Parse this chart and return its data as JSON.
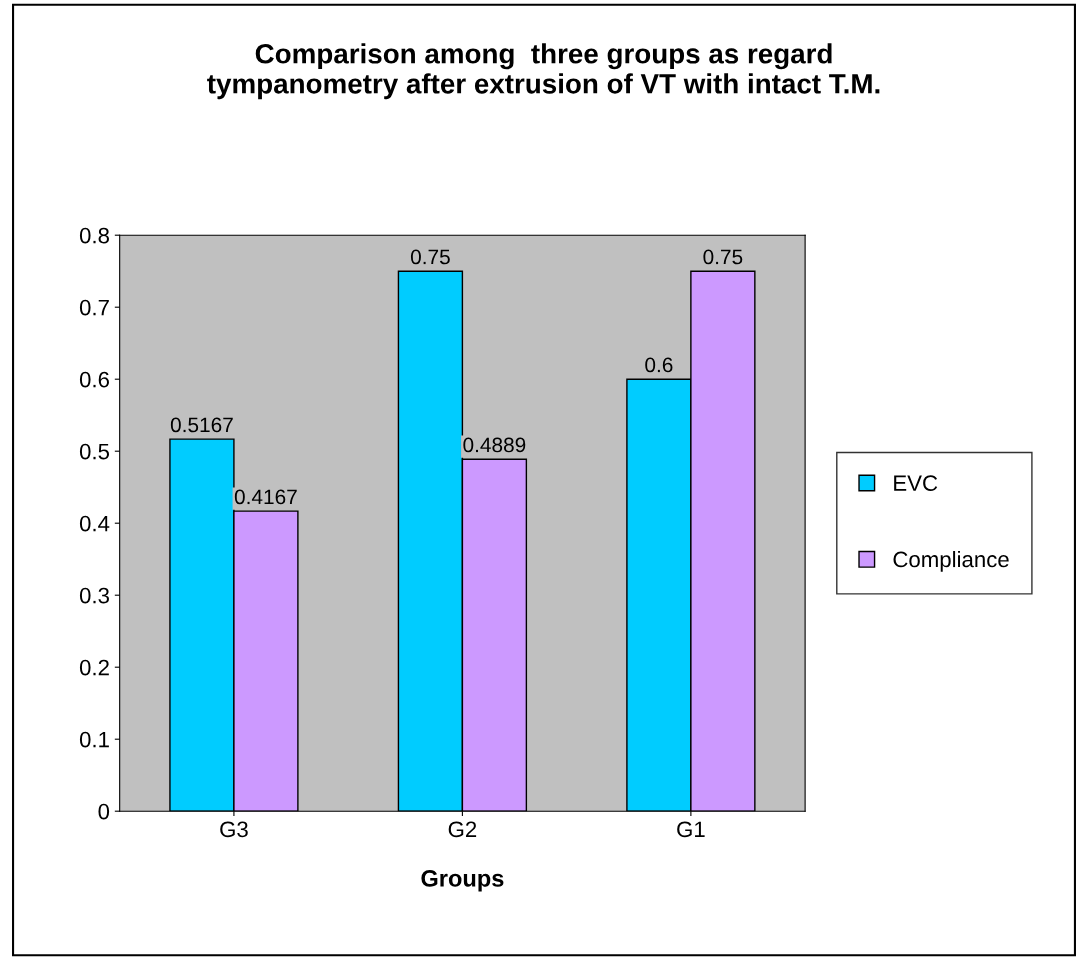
{
  "chart_data": {
    "type": "bar",
    "title": "Comparison among  three groups as regard\ntympanometry after extrusion of VT with intact T.M.",
    "xlabel": "Groups",
    "categories": [
      "G3",
      "G2",
      "G1"
    ],
    "series": [
      {
        "name": "EVC",
        "color": "#00ccff",
        "values": [
          0.5167,
          0.75,
          0.6
        ]
      },
      {
        "name": "Compliance",
        "color": "#cc99ff",
        "values": [
          0.4167,
          0.4889,
          0.75
        ]
      }
    ],
    "ylim": [
      0,
      0.8
    ],
    "yticks": [
      0,
      0.1,
      0.2,
      0.3,
      0.4,
      0.5,
      0.6,
      0.7,
      0.8
    ],
    "data_labels": true,
    "grid": false,
    "legend": "right"
  }
}
